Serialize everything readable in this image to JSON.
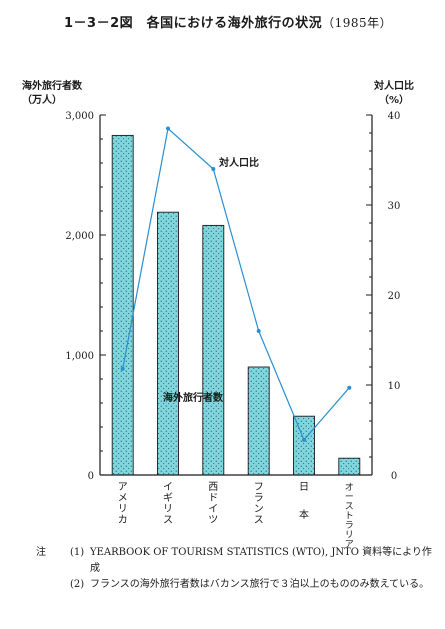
{
  "title": {
    "main": "1－3－2図　各国における海外旅行の状況",
    "year": "（1985年）"
  },
  "left_axis_title": {
    "line1": "海外旅行者数",
    "line2": "（万人）"
  },
  "right_axis_title": {
    "line1": "対人口比",
    "line2": "（%）"
  },
  "colors": {
    "bar_fill": "#7fd6de",
    "bar_stroke": "#1a1a1a",
    "line": "#2a8fd0",
    "axis": "#1a1a1a"
  },
  "chart_data": {
    "type": "bar",
    "categories": [
      "アメリカ",
      "イギリス",
      "西ドイツ",
      "フランス",
      "日本",
      "オーストラリア"
    ],
    "series": [
      {
        "name": "海外旅行者数",
        "type": "bar",
        "axis": "left",
        "values": [
          2830,
          2190,
          2080,
          900,
          490,
          140
        ]
      },
      {
        "name": "対人口比",
        "type": "line",
        "axis": "right",
        "values": [
          11.8,
          38.5,
          34.0,
          16.0,
          3.9,
          9.7
        ]
      }
    ],
    "ylabel": "海外旅行者数（万人）",
    "y2label": "対人口比（%）",
    "ylim": [
      0,
      3000
    ],
    "y2lim": [
      0,
      40
    ],
    "yticks": [
      "0",
      "1,000",
      "2,000",
      "3,000"
    ],
    "y2ticks": [
      "0",
      "10",
      "20",
      "30",
      "40"
    ]
  },
  "notes": [
    {
      "key": "注",
      "num": "(1)",
      "text": "YEARBOOK OF TOURISM STATISTICS (WTO), JNTO 資料等により作成"
    },
    {
      "key": "",
      "num": "(2)",
      "text": "フランスの海外旅行者数はバカンス旅行で３泊以上のもののみ数えている。"
    }
  ]
}
